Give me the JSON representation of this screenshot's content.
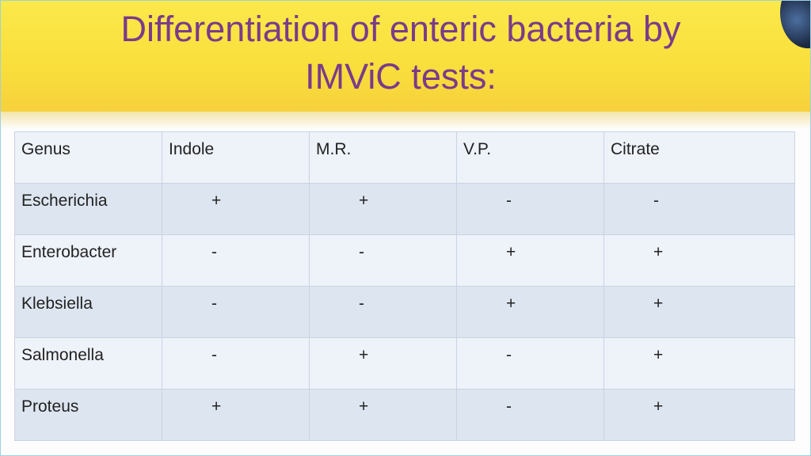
{
  "header": {
    "title": [
      "Differentiation of enteric bacteria by",
      "IMViC tests:"
    ]
  },
  "table": {
    "header": [
      "Genus",
      "Indole",
      "M.R.",
      "V.P.",
      "Citrate"
    ],
    "rows": [
      [
        "Escherichia",
        "+",
        "+",
        "-",
        "-"
      ],
      [
        "Enterobacter",
        "-",
        "-",
        "+",
        "+"
      ],
      [
        "Klebsiella",
        "-",
        "-",
        "+",
        "+"
      ],
      [
        "Salmonella",
        "-",
        "+",
        "-",
        "+"
      ],
      [
        "Proteus",
        "+",
        "+",
        "-",
        "+"
      ]
    ]
  }
}
